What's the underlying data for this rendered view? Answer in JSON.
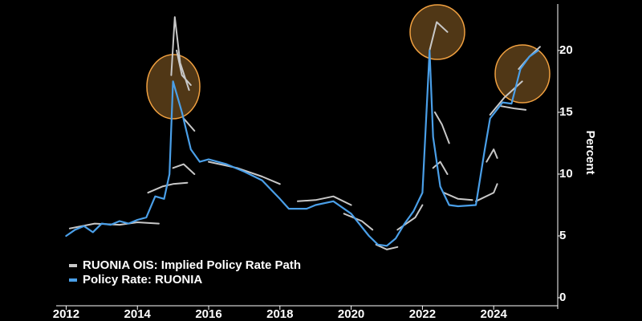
{
  "chart_data": {
    "type": "line",
    "y_label": "Percent",
    "xlim": [
      2011.9,
      2025.55
    ],
    "ylim": [
      0,
      23.5
    ],
    "xticks": [
      2012,
      2014,
      2016,
      2018,
      2020,
      2022,
      2024
    ],
    "yticks": [
      0,
      5,
      10,
      15,
      20
    ],
    "legend": "lower left",
    "series": [
      {
        "name": "RUONIA OIS: Implied Policy Rate Path",
        "color": "#c8c8c8",
        "x": [
          2012.1,
          2012.8,
          2013.5,
          2014.0,
          2014.6,
          null,
          2014.3,
          2014.7,
          2015.0,
          2015.4,
          null,
          2014.95,
          2015.05,
          2015.2,
          2015.45,
          null,
          2015.1,
          2015.25,
          2015.5,
          null,
          2015.3,
          2015.6,
          null,
          2015.0,
          2015.3,
          2015.6,
          null,
          2016.0,
          2016.8,
          2017.5,
          2018.0,
          null,
          2018.5,
          2019.0,
          2019.5,
          2020.0,
          null,
          2019.8,
          2020.3,
          2020.6,
          null,
          2020.7,
          2021.0,
          2021.3,
          null,
          2021.3,
          2021.8,
          2022.0,
          null,
          2022.2,
          2022.4,
          2022.7,
          null,
          2022.35,
          2022.55,
          2022.75,
          null,
          2022.3,
          2022.5,
          2022.7,
          null,
          2022.6,
          2023.0,
          2023.4,
          null,
          2023.5,
          2024.0,
          2024.1,
          null,
          2023.8,
          2024.0,
          2024.1,
          null,
          2023.9,
          2024.3,
          2024.8,
          null,
          2024.2,
          2024.6,
          2024.9,
          null,
          2024.7,
          2025.0,
          2025.3
        ],
        "values": [
          5.6,
          6.0,
          5.9,
          6.1,
          6.0,
          null,
          8.5,
          9.0,
          9.2,
          9.3,
          null,
          18.0,
          22.7,
          19.0,
          16.8,
          null,
          20.0,
          18.0,
          17.2,
          null,
          14.5,
          13.5,
          null,
          10.5,
          10.8,
          10.0,
          null,
          11.0,
          10.5,
          9.8,
          9.2,
          null,
          7.8,
          7.9,
          8.2,
          7.5,
          null,
          6.8,
          6.2,
          5.5,
          null,
          4.3,
          3.9,
          4.1,
          null,
          5.5,
          6.5,
          7.5,
          null,
          20.0,
          22.3,
          21.5,
          null,
          15.0,
          14.0,
          12.5,
          null,
          10.5,
          11.0,
          10.0,
          null,
          8.5,
          8.0,
          7.9,
          null,
          7.8,
          8.5,
          9.2,
          null,
          11.0,
          12.0,
          11.3,
          null,
          14.8,
          16.2,
          17.5,
          null,
          15.5,
          15.3,
          15.2,
          null,
          18.5,
          19.5,
          20.3
        ]
      },
      {
        "name": "Policy Rate: RUONIA",
        "color": "#4a9fe8",
        "x": [
          2012.0,
          2012.25,
          2012.5,
          2012.75,
          2013.0,
          2013.25,
          2013.5,
          2013.75,
          2014.0,
          2014.25,
          2014.5,
          2014.75,
          2014.9,
          2015.0,
          2015.25,
          2015.5,
          2015.75,
          2016.0,
          2016.5,
          2017.0,
          2017.5,
          2018.0,
          2018.25,
          2018.75,
          2019.0,
          2019.5,
          2020.0,
          2020.5,
          2020.75,
          2021.0,
          2021.25,
          2021.5,
          2021.75,
          2022.0,
          2022.2,
          2022.3,
          2022.5,
          2022.75,
          2023.0,
          2023.5,
          2023.75,
          2023.9,
          2024.25,
          2024.5,
          2024.75,
          2025.0,
          2025.25
        ],
        "values": [
          5.0,
          5.5,
          5.8,
          5.3,
          6.0,
          5.9,
          6.2,
          6.0,
          6.3,
          6.5,
          8.2,
          8.0,
          10.0,
          17.5,
          15.0,
          12.0,
          11.0,
          11.2,
          10.8,
          10.2,
          9.5,
          8.0,
          7.2,
          7.2,
          7.5,
          7.8,
          6.8,
          5.0,
          4.3,
          4.2,
          4.8,
          6.0,
          7.0,
          8.5,
          20.0,
          13.0,
          9.0,
          7.5,
          7.4,
          7.5,
          12.0,
          14.5,
          15.8,
          15.7,
          18.5,
          19.5,
          20.0
        ]
      }
    ]
  }
}
